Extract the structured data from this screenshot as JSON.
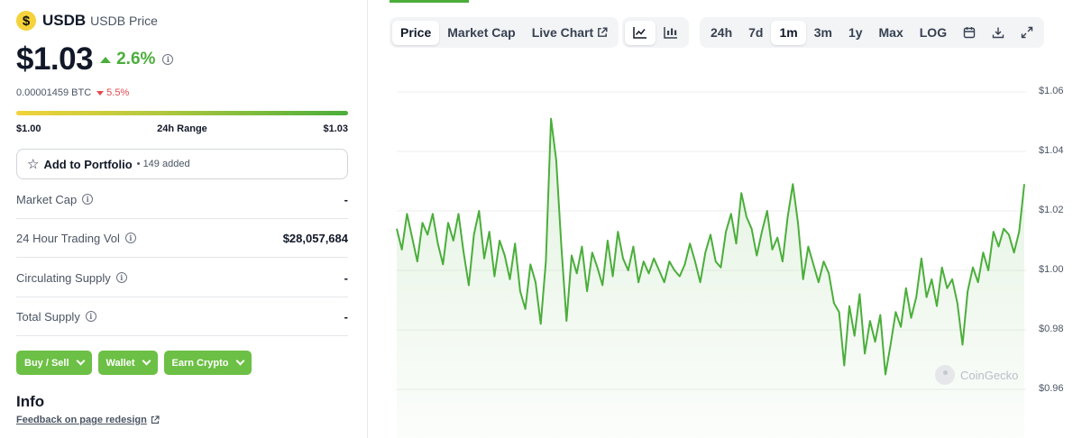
{
  "coin": {
    "symbol": "USDB",
    "name": "USDB Price",
    "logo_glyph": "$",
    "price": "$1.03",
    "change_24h": "2.6%",
    "btc_price": "0.00001459 BTC",
    "btc_change": "5.5%",
    "range_low": "$1.00",
    "range_label": "24h Range",
    "range_high": "$1.03",
    "range_position": 1.0
  },
  "portfolio": {
    "label": "Add to Portfolio",
    "count": "• 149 added"
  },
  "stats": [
    {
      "label": "Market Cap",
      "value": "-"
    },
    {
      "label": "24 Hour Trading Vol",
      "value": "$28,057,684"
    },
    {
      "label": "Circulating Supply",
      "value": "-"
    },
    {
      "label": "Total Supply",
      "value": "-"
    }
  ],
  "actions": [
    {
      "label": "Buy / Sell"
    },
    {
      "label": "Wallet"
    },
    {
      "label": "Earn Crypto"
    }
  ],
  "info": {
    "title": "Info",
    "feedback": "Feedback on page redesign"
  },
  "chart_tabs": [
    {
      "label": "Price",
      "active": true
    },
    {
      "label": "Market Cap",
      "active": false
    },
    {
      "label": "Live Chart",
      "active": false
    }
  ],
  "chart_types": [
    {
      "icon": "line-chart-icon",
      "active": true
    },
    {
      "icon": "candlestick-chart-icon",
      "active": false
    }
  ],
  "time_ranges": [
    {
      "label": "24h",
      "active": false
    },
    {
      "label": "7d",
      "active": false
    },
    {
      "label": "1m",
      "active": true
    },
    {
      "label": "3m",
      "active": false
    },
    {
      "label": "1y",
      "active": false
    },
    {
      "label": "Max",
      "active": false
    },
    {
      "label": "LOG",
      "active": false
    }
  ],
  "toolbar_icons": [
    "calendar-icon",
    "download-icon",
    "expand-icon"
  ],
  "watermark": "CoinGecko",
  "colors": {
    "accent_green": "#4bae3b",
    "negative_red": "#e5484d",
    "button_green": "#6cc045"
  },
  "chart_data": {
    "type": "area",
    "title": "",
    "xlabel": "",
    "ylabel": "",
    "ylim": [
      0.955,
      1.065
    ],
    "y_ticks": [
      "$1.06",
      "$1.04",
      "$1.02",
      "$1.00",
      "$0.98",
      "$0.96"
    ],
    "y_tick_values": [
      1.06,
      1.04,
      1.02,
      1.0,
      0.98,
      0.96
    ],
    "grid": true,
    "series": [
      {
        "values": [
          1.014,
          1.007,
          1.019,
          1.011,
          1.003,
          1.016,
          1.012,
          1.019,
          1.009,
          1.002,
          1.016,
          1.01,
          1.019,
          1.006,
          0.995,
          1.012,
          1.02,
          1.004,
          1.013,
          0.998,
          1.01,
          1.005,
          0.997,
          1.009,
          0.993,
          0.987,
          1.002,
          0.996,
          0.982,
          1.003,
          1.051,
          1.037,
          1.008,
          0.983,
          1.005,
          0.999,
          1.008,
          0.993,
          1.006,
          1.001,
          0.995,
          1.01,
          0.998,
          1.013,
          1.004,
          1.0,
          1.008,
          0.996,
          1.003,
          0.999,
          1.004,
          1.0,
          0.996,
          1.003,
          1.0,
          0.998,
          1.002,
          1.009,
          1.003,
          0.996,
          1.006,
          1.012,
          1.003,
          1.001,
          1.013,
          1.019,
          1.009,
          1.026,
          1.018,
          1.014,
          1.005,
          1.013,
          1.02,
          1.007,
          1.011,
          1.003,
          1.018,
          1.029,
          1.016,
          0.997,
          1.008,
          1.002,
          0.996,
          1.003,
          0.999,
          0.989,
          0.986,
          0.968,
          0.988,
          0.978,
          0.992,
          0.972,
          0.983,
          0.976,
          0.985,
          0.965,
          0.975,
          0.986,
          0.981,
          0.994,
          0.984,
          0.991,
          1.004,
          0.991,
          0.997,
          0.988,
          1.001,
          0.994,
          0.997,
          0.989,
          0.975,
          0.993,
          1.001,
          0.996,
          1.006,
          1.0,
          1.013,
          1.008,
          1.014,
          1.012,
          1.006,
          1.013,
          1.029
        ]
      }
    ]
  }
}
